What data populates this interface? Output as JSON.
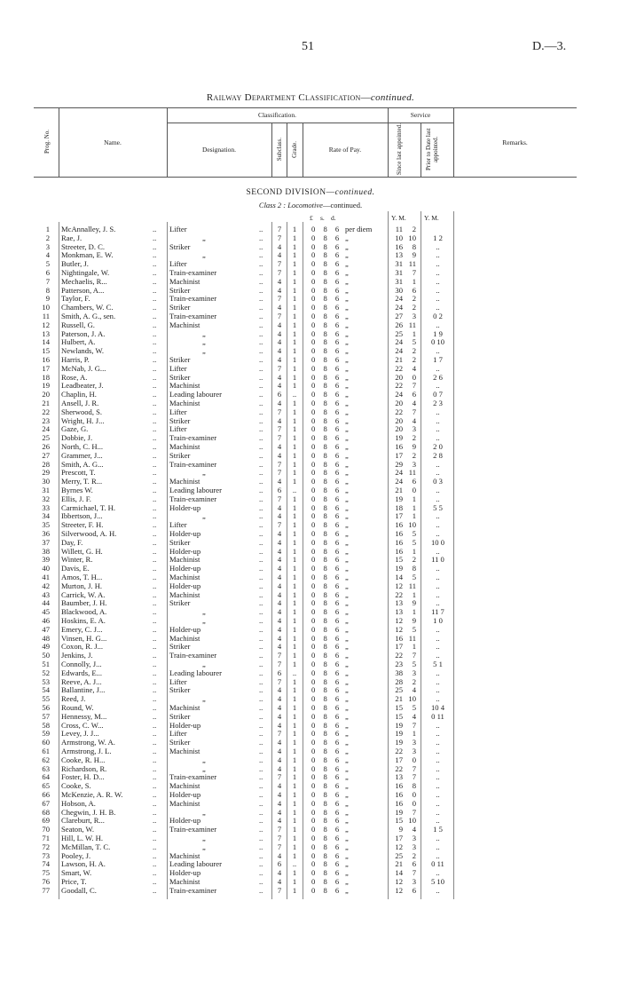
{
  "page": {
    "number": "51",
    "reference": "D.—3."
  },
  "title": {
    "main": "Railway Department Classification—",
    "suffix": "continued."
  },
  "header": {
    "prog_no": "Prog. No.",
    "name": "Name.",
    "classification": "Classification.",
    "designation": "Designation.",
    "subclass": "Subclass.",
    "grade": "Grade.",
    "rate_of_pay": "Rate of Pay.",
    "service": "Service",
    "since_last": "Since last appointed.",
    "prior_to_date": "Prior to Date last appointed.",
    "remarks": "Remarks."
  },
  "section": {
    "division": "SECOND DIVISION—",
    "division_suffix": "continued.",
    "class_label": "Class 2 : ",
    "class_name": "Locomotive",
    "class_suffix": "—continued."
  },
  "units": {
    "pounds": "£",
    "shillings": "s.",
    "pence": "d.",
    "since": "Y.  M.",
    "prior": "Y.  M."
  },
  "rate": {
    "value": "0 8 6",
    "first_unit": "per diem",
    "ditto": "„"
  },
  "ditto": "„",
  "dots": "..",
  "rows": [
    [
      "1",
      "McAnnalley, J. S.",
      "Lifter",
      "7",
      "1",
      "11",
      "2",
      ""
    ],
    [
      "2",
      "Rae, J.",
      "„",
      "7",
      "1",
      "10",
      "10",
      "1  2"
    ],
    [
      "3",
      "Streeter, D. C.",
      "Striker",
      "4",
      "1",
      "16",
      "8",
      ".."
    ],
    [
      "4",
      "Monkman, E. W.",
      "„",
      "4",
      "1",
      "13",
      "9",
      ".."
    ],
    [
      "5",
      "Butler, J.",
      "Lifter",
      "7",
      "1",
      "31",
      "11",
      ".."
    ],
    [
      "6",
      "Nightingale, W.",
      "Train-examiner",
      "7",
      "1",
      "31",
      "7",
      ".."
    ],
    [
      "7",
      "Mechaelis, R...",
      "Machinist",
      "4",
      "1",
      "31",
      "1",
      ".."
    ],
    [
      "8",
      "Patterson, A...",
      "Striker",
      "4",
      "1",
      "30",
      "6",
      ".."
    ],
    [
      "9",
      "Taylor, F.",
      "Train-examiner",
      "7",
      "1",
      "24",
      "2",
      ".."
    ],
    [
      "10",
      "Chambers, W. C.",
      "Striker",
      "4",
      "1",
      "24",
      "2",
      ".."
    ],
    [
      "11",
      "Smith, A. G., sen.",
      "Train-examiner",
      "7",
      "1",
      "27",
      "3",
      "0  2"
    ],
    [
      "12",
      "Russell, G.",
      "Machinist",
      "4",
      "1",
      "26",
      "11",
      ".."
    ],
    [
      "13",
      "Paterson, J. A.",
      "„",
      "4",
      "1",
      "25",
      "1",
      "1  9"
    ],
    [
      "14",
      "Hulbert, A.",
      "„",
      "4",
      "1",
      "24",
      "5",
      "0 10"
    ],
    [
      "15",
      "Newlands, W.",
      "„",
      "4",
      "1",
      "24",
      "2",
      ".."
    ],
    [
      "16",
      "Harris, P.",
      "Striker",
      "4",
      "1",
      "21",
      "2",
      "1  7"
    ],
    [
      "17",
      "McNab, J. G...",
      "Lifter",
      "7",
      "1",
      "22",
      "4",
      ".."
    ],
    [
      "18",
      "Rose, A.",
      "Striker",
      "4",
      "1",
      "20",
      "0",
      "2  6"
    ],
    [
      "19",
      "Leadbeater, J.",
      "Machinist",
      "4",
      "1",
      "22",
      "7",
      ".."
    ],
    [
      "20",
      "Chaplin, H.",
      "Leading labourer",
      "6",
      "..",
      "24",
      "6",
      "0  7"
    ],
    [
      "21",
      "Ansell, J. R.",
      "Machinist",
      "4",
      "1",
      "20",
      "4",
      "2  3"
    ],
    [
      "22",
      "Sherwood, S.",
      "Lifter",
      "7",
      "1",
      "22",
      "7",
      ".."
    ],
    [
      "23",
      "Wright, H. J...",
      "Striker",
      "4",
      "1",
      "20",
      "4",
      ".."
    ],
    [
      "24",
      "Gaze, G.",
      "Lifter",
      "7",
      "1",
      "20",
      "3",
      ".."
    ],
    [
      "25",
      "Dobbie, J.",
      "Train-examiner",
      "7",
      "1",
      "19",
      "2",
      ".."
    ],
    [
      "26",
      "North, C. H...",
      "Machinist",
      "4",
      "1",
      "16",
      "9",
      "2  0"
    ],
    [
      "27",
      "Grammer, J...",
      "Striker",
      "4",
      "1",
      "17",
      "2",
      "2  8"
    ],
    [
      "28",
      "Smith, A. G...",
      "Train-examiner",
      "7",
      "1",
      "29",
      "3",
      ".."
    ],
    [
      "29",
      "Prescott, T.",
      "„",
      "7",
      "1",
      "24",
      "11",
      ".."
    ],
    [
      "30",
      "Merry, T. R...",
      "Machinist",
      "4",
      "1",
      "24",
      "6",
      "0  3"
    ],
    [
      "31",
      "Byrnes W.",
      "Leading labourer",
      "6",
      "..",
      "21",
      "0",
      ".."
    ],
    [
      "32",
      "Ellis, J. F.",
      "Train-examiner",
      "7",
      "1",
      "19",
      "1",
      ".."
    ],
    [
      "33",
      "Carmichael, T. H.",
      "Holder-up",
      "4",
      "1",
      "18",
      "1",
      "5  5"
    ],
    [
      "34",
      "Ibbertson, J...",
      "„",
      "4",
      "1",
      "17",
      "1",
      ".."
    ],
    [
      "35",
      "Streeter, F. H.",
      "Lifter",
      "7",
      "1",
      "16",
      "10",
      ".."
    ],
    [
      "36",
      "Silverwood, A. H.",
      "Holder-up",
      "4",
      "1",
      "16",
      "5",
      ".."
    ],
    [
      "37",
      "Day, F.",
      "Striker",
      "4",
      "1",
      "16",
      "5",
      "10  0"
    ],
    [
      "38",
      "Willett, G. H.",
      "Holder-up",
      "4",
      "1",
      "16",
      "1",
      ".."
    ],
    [
      "39",
      "Winter, R.",
      "Machinist",
      "4",
      "1",
      "15",
      "2",
      "11  0"
    ],
    [
      "40",
      "Davis, E.",
      "Holder-up",
      "4",
      "1",
      "19",
      "8",
      ".."
    ],
    [
      "41",
      "Amos, T. H...",
      "Machinist",
      "4",
      "1",
      "14",
      "5",
      ".."
    ],
    [
      "42",
      "Murton, J. H.",
      "Holder-up",
      "4",
      "1",
      "12",
      "11",
      ".."
    ],
    [
      "43",
      "Carrick, W. A.",
      "Machinist",
      "4",
      "1",
      "22",
      "1",
      ".."
    ],
    [
      "44",
      "Baumber, J. H.",
      "Striker",
      "4",
      "1",
      "13",
      "9",
      ".."
    ],
    [
      "45",
      "Blackwood, A.",
      "„",
      "4",
      "1",
      "13",
      "1",
      "11  7"
    ],
    [
      "46",
      "Hoskins, E. A.",
      "„",
      "4",
      "1",
      "12",
      "9",
      "1  0"
    ],
    [
      "47",
      "Emery, C. J...",
      "Holder-up",
      "4",
      "1",
      "12",
      "5",
      ".."
    ],
    [
      "48",
      "Vinsen, H. G...",
      "Machinist",
      "4",
      "1",
      "16",
      "11",
      ".."
    ],
    [
      "49",
      "Coxon, R. J...",
      "Striker",
      "4",
      "1",
      "17",
      "1",
      ".."
    ],
    [
      "50",
      "Jenkins, J.",
      "Train-examiner",
      "7",
      "1",
      "22",
      "7",
      ".."
    ],
    [
      "51",
      "Connolly, J...",
      "„",
      "7",
      "1",
      "23",
      "5",
      "5  1"
    ],
    [
      "52",
      "Edwards, E...",
      "Leading labourer",
      "6",
      "..",
      "38",
      "3",
      ".."
    ],
    [
      "53",
      "Reeve, A. J...",
      "Lifter",
      "7",
      "1",
      "28",
      "2",
      ".."
    ],
    [
      "54",
      "Ballantine, J...",
      "Striker",
      "4",
      "1",
      "25",
      "4",
      ".."
    ],
    [
      "55",
      "Reed, J.",
      "„",
      "4",
      "1",
      "21",
      "10",
      ".."
    ],
    [
      "56",
      "Round, W.",
      "Machinist",
      "4",
      "1",
      "15",
      "5",
      "10  4"
    ],
    [
      "57",
      "Hennessy, M...",
      "Striker",
      "4",
      "1",
      "15",
      "4",
      "0 11"
    ],
    [
      "58",
      "Cross, C. W...",
      "Holder-up",
      "4",
      "1",
      "19",
      "7",
      ".."
    ],
    [
      "59",
      "Levey, J. J...",
      "Lifter",
      "7",
      "1",
      "19",
      "1",
      ".."
    ],
    [
      "60",
      "Armstrong, W. A.",
      "Striker",
      "4",
      "1",
      "19",
      "3",
      ".."
    ],
    [
      "61",
      "Armstrong, J. L.",
      "Machinist",
      "4",
      "1",
      "22",
      "3",
      ".."
    ],
    [
      "62",
      "Cooke, R. H...",
      "„",
      "4",
      "1",
      "17",
      "0",
      ".."
    ],
    [
      "63",
      "Richardson, R.",
      "„",
      "4",
      "1",
      "22",
      "7",
      ".."
    ],
    [
      "64",
      "Foster, H. D...",
      "Train-examiner",
      "7",
      "1",
      "13",
      "7",
      ".."
    ],
    [
      "65",
      "Cooke, S.",
      "Machinist",
      "4",
      "1",
      "16",
      "8",
      ".."
    ],
    [
      "66",
      "McKenzie, A. R. W.",
      "Holder-up",
      "4",
      "1",
      "16",
      "0",
      ".."
    ],
    [
      "67",
      "Hobson, A.",
      "Machinist",
      "4",
      "1",
      "16",
      "0",
      ".."
    ],
    [
      "68",
      "Chegwin, J. H. B.",
      "„",
      "4",
      "1",
      "19",
      "7",
      ".."
    ],
    [
      "69",
      "Clareburt, R...",
      "Holder-up",
      "4",
      "1",
      "15",
      "10",
      ".."
    ],
    [
      "70",
      "Seaton, W.",
      "Train-examiner",
      "7",
      "1",
      "9",
      "4",
      "1  5"
    ],
    [
      "71",
      "Hill, L. W. H.",
      "„",
      "7",
      "1",
      "17",
      "3",
      ".."
    ],
    [
      "72",
      "McMillan, T. C.",
      "„",
      "7",
      "1",
      "12",
      "3",
      ".."
    ],
    [
      "73",
      "Pooley, J.",
      "Machinist",
      "4",
      "1",
      "25",
      "2",
      ".."
    ],
    [
      "74",
      "Lawson, H. A.",
      "Leading labourer",
      "6",
      "..",
      "21",
      "6",
      "0 11"
    ],
    [
      "75",
      "Smart, W.",
      "Holder-up",
      "4",
      "1",
      "14",
      "7",
      ".."
    ],
    [
      "76",
      "Price, T.",
      "Machinist",
      "4",
      "1",
      "12",
      "3",
      "5 10"
    ],
    [
      "77",
      "Goodall, C.",
      "Train-examiner",
      "7",
      "1",
      "12",
      "6",
      ".."
    ]
  ]
}
